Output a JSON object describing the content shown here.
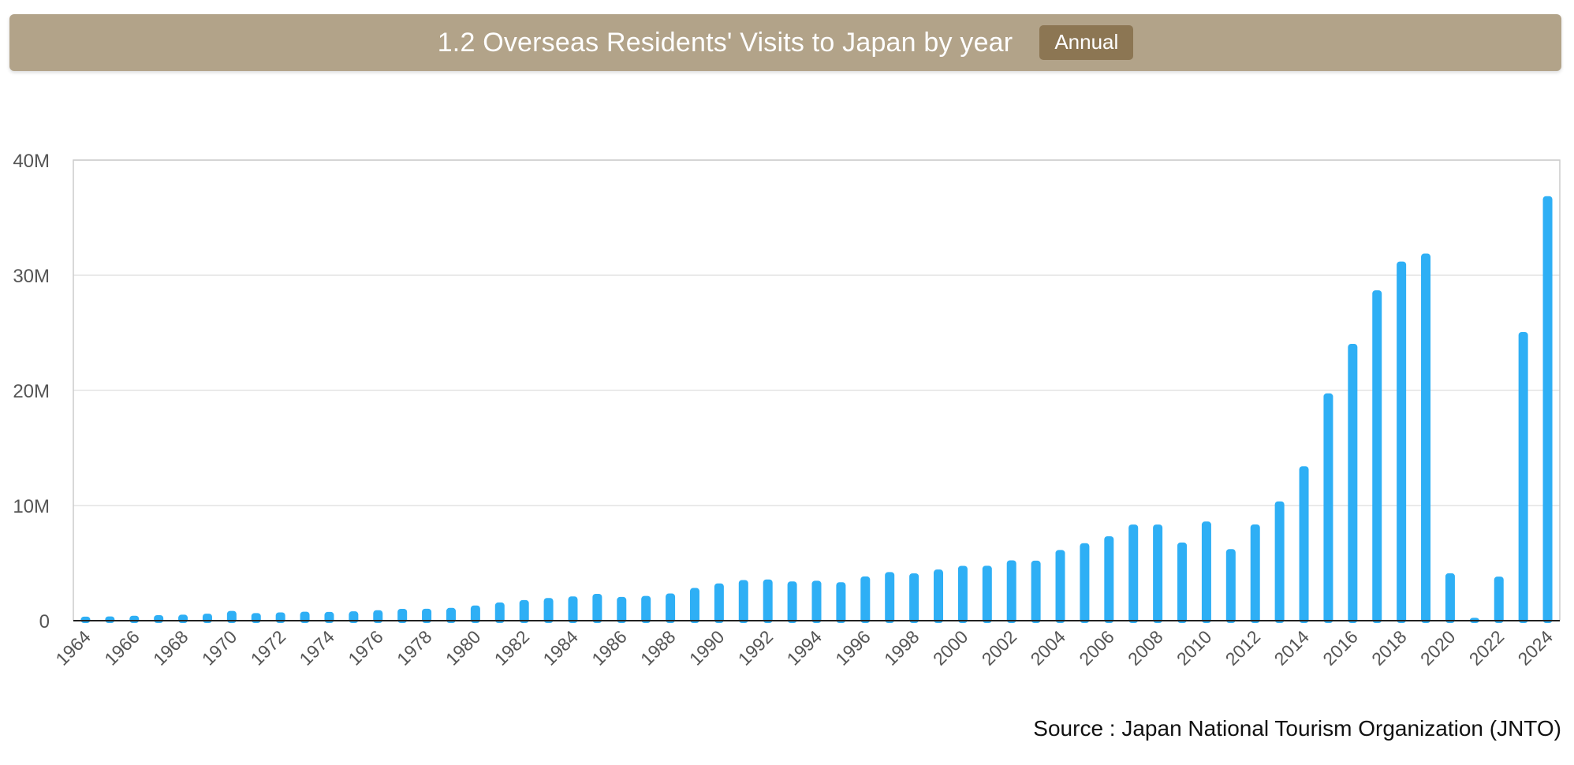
{
  "header": {
    "title": "1.2 Overseas Residents' Visits to Japan by year",
    "badge": "Annual"
  },
  "source": "Source : Japan National Tourism Organization (JNTO)",
  "colors": {
    "header_bg": "#b2a389",
    "badge_bg": "#8c7653",
    "bar": "#2eaff5",
    "grid": "#e3e3e3",
    "axis": "#222222"
  },
  "chart_data": {
    "type": "bar",
    "title": "1.2 Overseas Residents' Visits to Japan by year",
    "xlabel": "",
    "ylabel": "",
    "ylim": [
      0,
      40000000
    ],
    "yticks": [
      0,
      10000000,
      20000000,
      30000000,
      40000000
    ],
    "ytick_labels": [
      "0",
      "10M",
      "20M",
      "30M",
      "40M"
    ],
    "grid": true,
    "categories": [
      "1964",
      "1965",
      "1966",
      "1967",
      "1968",
      "1969",
      "1970",
      "1971",
      "1972",
      "1973",
      "1974",
      "1975",
      "1976",
      "1977",
      "1978",
      "1979",
      "1980",
      "1981",
      "1982",
      "1983",
      "1984",
      "1985",
      "1986",
      "1987",
      "1988",
      "1989",
      "1990",
      "1991",
      "1992",
      "1993",
      "1994",
      "1995",
      "1996",
      "1997",
      "1998",
      "1999",
      "2000",
      "2001",
      "2002",
      "2003",
      "2004",
      "2005",
      "2006",
      "2007",
      "2008",
      "2009",
      "2010",
      "2011",
      "2012",
      "2013",
      "2014",
      "2015",
      "2016",
      "2017",
      "2018",
      "2019",
      "2020",
      "2021",
      "2022",
      "2023",
      "2024"
    ],
    "xtick_labels": [
      "1964",
      "1966",
      "1968",
      "1970",
      "1972",
      "1974",
      "1976",
      "1978",
      "1980",
      "1982",
      "1984",
      "1986",
      "1988",
      "1990",
      "1992",
      "1994",
      "1996",
      "1998",
      "2000",
      "2002",
      "2004",
      "2006",
      "2008",
      "2010",
      "2012",
      "2014",
      "2016",
      "2018",
      "2020",
      "2022",
      "2024"
    ],
    "values": [
      350000,
      370000,
      430000,
      480000,
      520000,
      610000,
      850000,
      660000,
      720000,
      780000,
      760000,
      810000,
      910000,
      1030000,
      1040000,
      1110000,
      1320000,
      1580000,
      1790000,
      1970000,
      2110000,
      2330000,
      2060000,
      2150000,
      2360000,
      2840000,
      3240000,
      3530000,
      3580000,
      3410000,
      3470000,
      3340000,
      3840000,
      4220000,
      4110000,
      4440000,
      4760000,
      4770000,
      5240000,
      5210000,
      6140000,
      6730000,
      7330000,
      8350000,
      8350000,
      6790000,
      8610000,
      6220000,
      8360000,
      10360000,
      13410000,
      19740000,
      24040000,
      28690000,
      31190000,
      31880000,
      4120000,
      250000,
      3830000,
      25070000,
      36870000
    ]
  }
}
